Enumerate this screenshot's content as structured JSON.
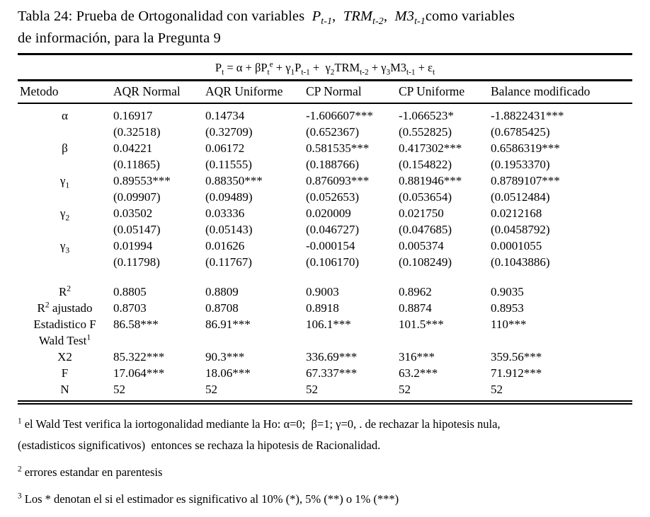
{
  "colors": {
    "text": "#000000",
    "background": "#ffffff",
    "rule": "#000000"
  },
  "title": {
    "segments": [
      {
        "text": "Tabla 24: Prueba de Ortogonalidad con variables  "
      },
      {
        "text": "P",
        "italic": true
      },
      {
        "text": "t-1",
        "style": "sub",
        "italic": true
      },
      {
        "text": ",  "
      },
      {
        "text": "TRM",
        "italic": true
      },
      {
        "text": "t-2",
        "style": "sub",
        "italic": true
      },
      {
        "text": ",  "
      },
      {
        "text": "M3",
        "italic": true
      },
      {
        "text": "t-1",
        "style": "sub",
        "italic": true
      },
      {
        "text": "como variables"
      },
      {
        "br": true
      },
      {
        "text": "de información, para la Pregunta 9"
      }
    ]
  },
  "equation": {
    "segments": [
      {
        "text": "P"
      },
      {
        "text": "t",
        "style": "sub"
      },
      {
        "text": " = α + βP"
      },
      {
        "text": "t",
        "style": "sub"
      },
      {
        "text": "e",
        "style": "sup"
      },
      {
        "text": " + γ"
      },
      {
        "text": "1",
        "style": "sub"
      },
      {
        "text": "P"
      },
      {
        "text": "t-1",
        "style": "sub"
      },
      {
        "text": " +  γ"
      },
      {
        "text": "2",
        "style": "sub"
      },
      {
        "text": "TRM"
      },
      {
        "text": "t-2",
        "style": "sub"
      },
      {
        "text": " + γ"
      },
      {
        "text": "3",
        "style": "sub"
      },
      {
        "text": "M3"
      },
      {
        "text": "t-1",
        "style": "sub"
      },
      {
        "text": " + ε"
      },
      {
        "text": "t",
        "style": "sub"
      }
    ]
  },
  "table": {
    "headers": [
      "Metodo",
      "AQR Normal",
      "AQR Uniforme",
      "CP Normal",
      "CP Uniforme",
      "Balance modificado"
    ],
    "rows": [
      {
        "label_segments": [
          {
            "text": "α"
          }
        ],
        "cells": [
          "0.16917",
          "0.14734",
          "-1.606607***",
          "-1.066523*",
          "-1.8822431***"
        ]
      },
      {
        "label_segments": [],
        "cells": [
          "(0.32518)",
          "(0.32709)",
          "(0.652367)",
          "(0.552825)",
          "(0.6785425)"
        ]
      },
      {
        "label_segments": [
          {
            "text": "β"
          }
        ],
        "cells": [
          "0.04221",
          "0.06172",
          "0.581535***",
          "0.417302***",
          "0.6586319***"
        ]
      },
      {
        "label_segments": [],
        "cells": [
          "(0.11865)",
          "(0.11555)",
          "(0.188766)",
          "(0.154822)",
          "(0.1953370)"
        ]
      },
      {
        "label_segments": [
          {
            "text": "γ"
          },
          {
            "text": "1",
            "style": "sub"
          }
        ],
        "cells": [
          "0.89553***",
          "0.88350***",
          "0.876093***",
          "0.881946***",
          "0.8789107***"
        ]
      },
      {
        "label_segments": [],
        "cells": [
          "(0.09907)",
          "(0.09489)",
          "(0.052653)",
          "(0.053654)",
          "(0.0512484)"
        ]
      },
      {
        "label_segments": [
          {
            "text": "γ"
          },
          {
            "text": "2",
            "style": "sub"
          }
        ],
        "cells": [
          "0.03502",
          "0.03336",
          "0.020009",
          "0.021750",
          "0.0212168"
        ]
      },
      {
        "label_segments": [],
        "cells": [
          "(0.05147)",
          "(0.05143)",
          "(0.046727)",
          "(0.047685)",
          "(0.0458792)"
        ]
      },
      {
        "label_segments": [
          {
            "text": "γ"
          },
          {
            "text": "3",
            "style": "sub"
          }
        ],
        "cells": [
          "0.01994",
          "0.01626",
          "-0.000154",
          "0.005374",
          "0.0001055"
        ]
      },
      {
        "label_segments": [],
        "cells": [
          "(0.11798)",
          "(0.11767)",
          "(0.106170)",
          "(0.108249)",
          "(0.1043886)"
        ]
      },
      {
        "label_segments": [
          {
            "text": "R"
          },
          {
            "text": "2",
            "style": "sup"
          }
        ],
        "gap_before": true,
        "cells": [
          "0.8805",
          "0.8809",
          "0.9003",
          "0.8962",
          "0.9035"
        ]
      },
      {
        "label_segments": [
          {
            "text": "R"
          },
          {
            "text": "2",
            "style": "sup"
          },
          {
            "text": " ajustado"
          }
        ],
        "cells": [
          "0.8703",
          "0.8708",
          "0.8918",
          "0.8874",
          "0.8953"
        ]
      },
      {
        "label_segments": [
          {
            "text": "Estadistico F"
          }
        ],
        "cells": [
          "86.58***",
          "86.91***",
          "106.1***",
          "101.5***",
          "110***"
        ]
      },
      {
        "label_segments": [
          {
            "text": "Wald Test"
          },
          {
            "text": "1",
            "style": "sup"
          }
        ],
        "cells": [
          "",
          "",
          "",
          "",
          ""
        ]
      },
      {
        "label_segments": [
          {
            "text": "X2"
          }
        ],
        "cells": [
          "85.322***",
          "90.3***",
          "336.69***",
          "316***",
          "359.56***"
        ]
      },
      {
        "label_segments": [
          {
            "text": "F"
          }
        ],
        "cells": [
          "17.064***",
          "18.06***",
          "67.337***",
          "63.2***",
          "71.912***"
        ]
      },
      {
        "label_segments": [
          {
            "text": "N"
          }
        ],
        "cells": [
          "52",
          "52",
          "52",
          "52",
          "52"
        ]
      }
    ]
  },
  "footnotes": [
    {
      "segments": [
        {
          "text": "1",
          "style": "sup"
        },
        {
          "text": " el Wald Test verifica la iortogonalidad mediante la Ho: α=0;  β=1; γ=0, . de rechazar la hipotesis nula,"
        },
        {
          "br": true
        },
        {
          "text": "(estadisticos significativos)  entonces se rechaza la hipotesis de Racionalidad."
        }
      ]
    },
    {
      "segments": [
        {
          "text": "2",
          "style": "sup"
        },
        {
          "text": " errores estandar en parentesis"
        }
      ]
    },
    {
      "segments": [
        {
          "text": "3",
          "style": "sup"
        },
        {
          "text": " Los * denotan el si el estimador es significativo al 10% (*), 5% (**) o 1% (***)"
        }
      ]
    }
  ]
}
